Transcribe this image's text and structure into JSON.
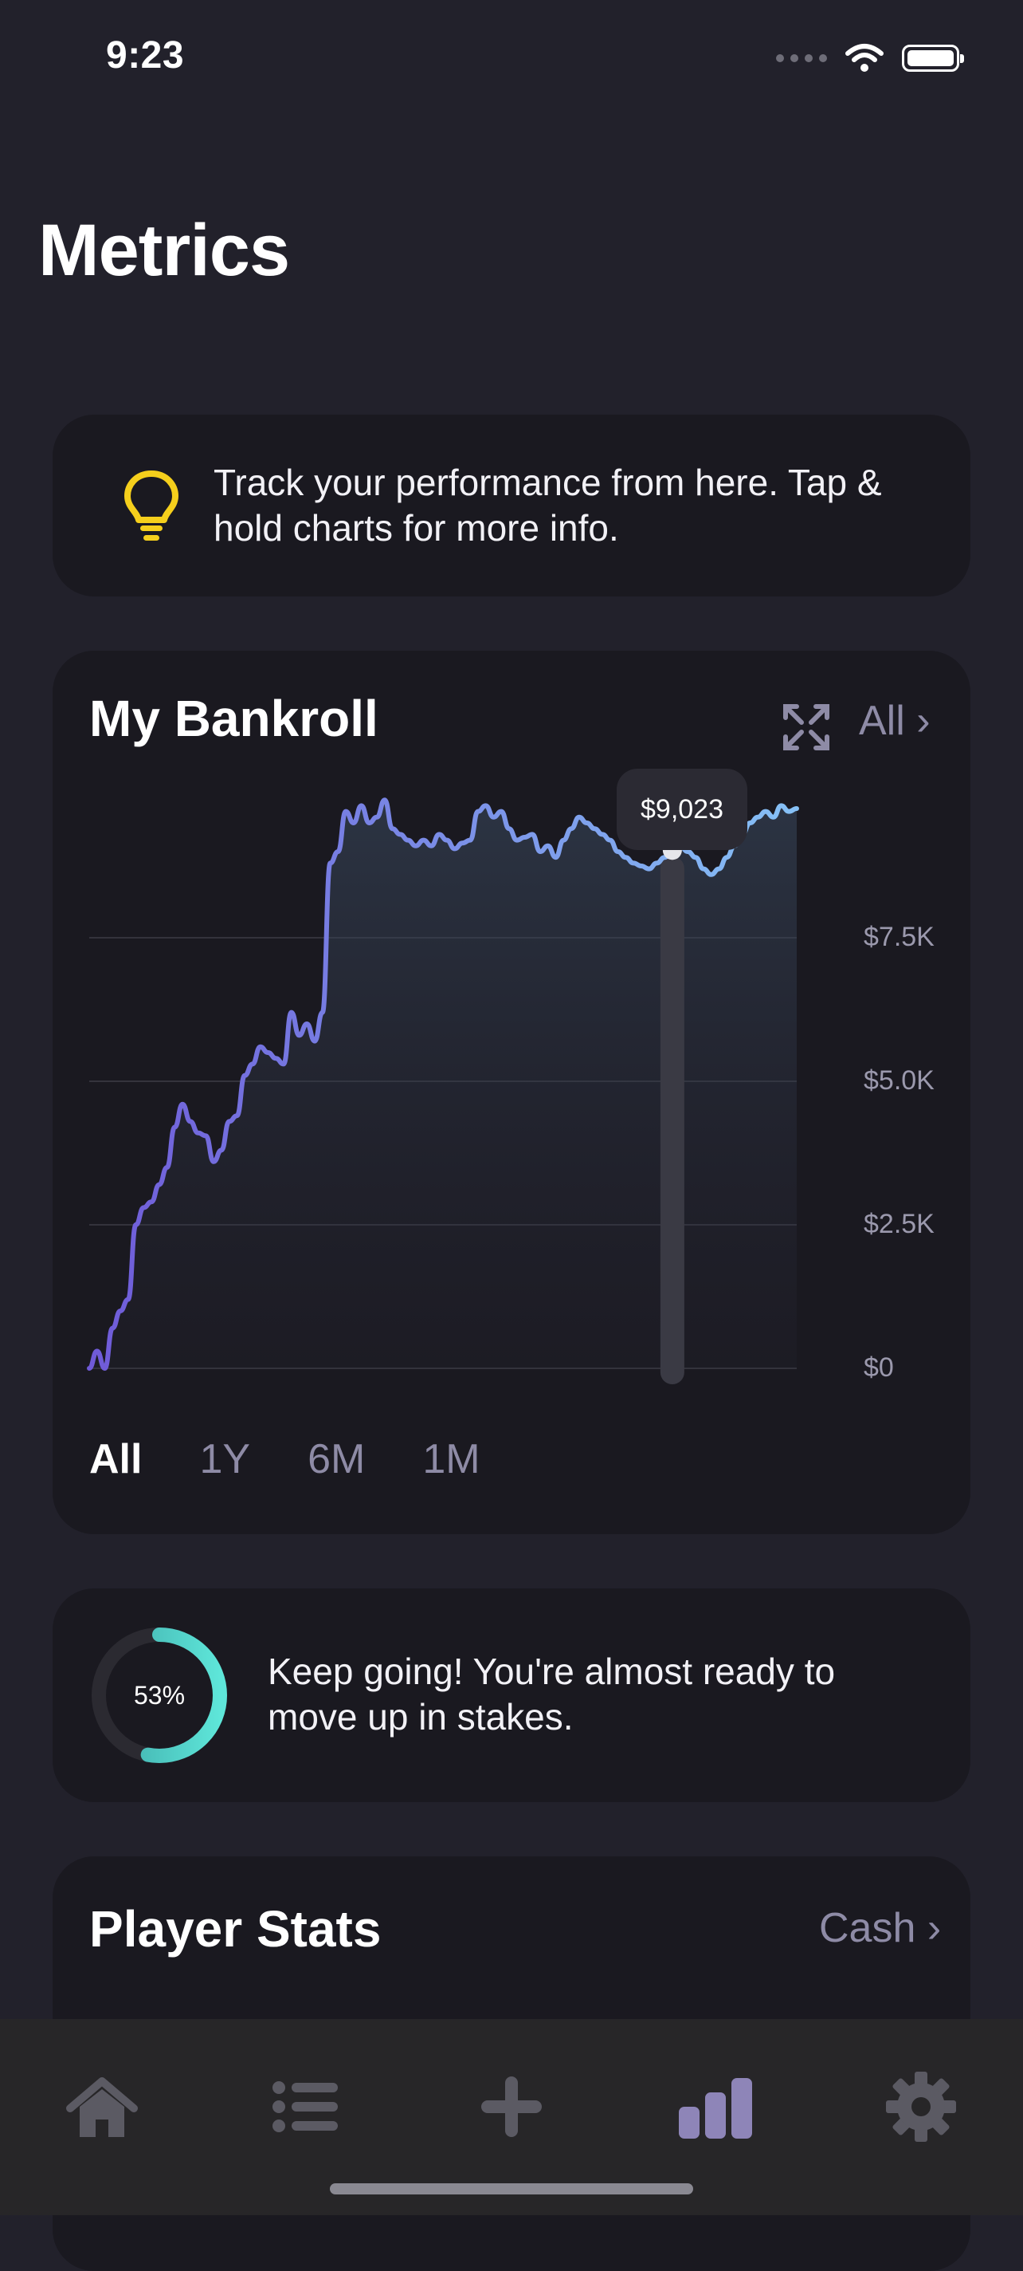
{
  "status_bar": {
    "time": "9:23"
  },
  "header": {
    "title": "Metrics"
  },
  "tip": {
    "icon": "lightbulb-icon",
    "text": "Track your performance from here. Tap & hold charts for more info."
  },
  "bankroll": {
    "title": "My Bankroll",
    "filter_label": "All ›",
    "tooltip_value": "$9,023",
    "ranges": [
      "All",
      "1Y",
      "6M",
      "1M"
    ],
    "selected_range": "All"
  },
  "chart_data": {
    "type": "area",
    "title": "My Bankroll",
    "ylim": [
      0,
      10000
    ],
    "y_ticks": [
      "$0",
      "$2.5K",
      "$5.0K",
      "$7.5K"
    ],
    "y_tick_values": [
      0,
      2500,
      5000,
      7500
    ],
    "highlight": {
      "index": 75,
      "value": 9023
    },
    "values": [
      0,
      300,
      0,
      700,
      1000,
      1200,
      2500,
      2800,
      2900,
      3200,
      3500,
      4200,
      4600,
      4300,
      4100,
      4050,
      3600,
      3800,
      4300,
      4400,
      5100,
      5300,
      5600,
      5500,
      5400,
      5300,
      6200,
      5800,
      6000,
      5700,
      6200,
      8800,
      9000,
      9700,
      9500,
      9800,
      9500,
      9600,
      9900,
      9400,
      9300,
      9200,
      9100,
      9200,
      9100,
      9300,
      9200,
      9050,
      9150,
      9200,
      9700,
      9800,
      9600,
      9700,
      9400,
      9200,
      9250,
      9300,
      9000,
      9100,
      8900,
      9200,
      9400,
      9600,
      9500,
      9400,
      9300,
      9200,
      9000,
      8900,
      8800,
      8750,
      8700,
      8800,
      8900,
      9023,
      9100,
      9000,
      8900,
      8700,
      8600,
      8700,
      8900,
      9100,
      9300,
      9500,
      9600,
      9700,
      9600,
      9800,
      9700,
      9750
    ]
  },
  "progress": {
    "percent_label": "53%",
    "percent_value": 53,
    "text": "Keep going! You're almost ready to move up in stakes."
  },
  "player_stats": {
    "title": "Player Stats",
    "filter_label": "Cash ›"
  },
  "tab_bar": {
    "items": [
      {
        "name": "home-icon",
        "selected": false
      },
      {
        "name": "list-icon",
        "selected": false
      },
      {
        "name": "add-icon",
        "selected": false
      },
      {
        "name": "bar-chart-icon",
        "selected": true
      },
      {
        "name": "gear-icon",
        "selected": false
      }
    ]
  },
  "colors": {
    "background": "#22212b",
    "card": "#1a1920",
    "accent_purple": "#8e8ba6",
    "line_start": "#6f5ad8",
    "line_end": "#86c1f6",
    "ring_start": "#3da8a8",
    "ring_end": "#5ee6d9",
    "tip_yellow": "#f5cf1c"
  }
}
